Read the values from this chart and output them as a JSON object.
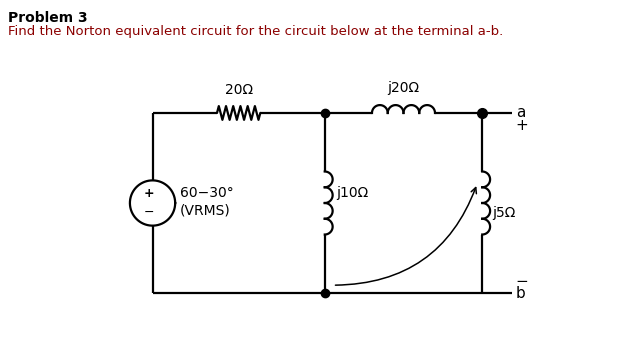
{
  "title": "Problem 3",
  "subtitle": "Find the Norton equivalent circuit for the circuit below at the terminal a-b.",
  "title_fontsize": 10,
  "subtitle_fontsize": 9.5,
  "title_color": "#000000",
  "subtitle_color": "#8B0000",
  "bg_color": "#ffffff",
  "resistor_20_label": "20Ω",
  "inductor_j20_label": "j20Ω",
  "inductor_j10_label": "j10Ω",
  "inductor_j5_label": "j5Ω",
  "source_label1": "60−30°",
  "source_label2": "(VRMS)",
  "terminal_a": "a",
  "terminal_b": "b",
  "plus_label": "+",
  "minus_label": "−",
  "line_color": "#000000",
  "text_color": "#000000",
  "lw": 1.6
}
